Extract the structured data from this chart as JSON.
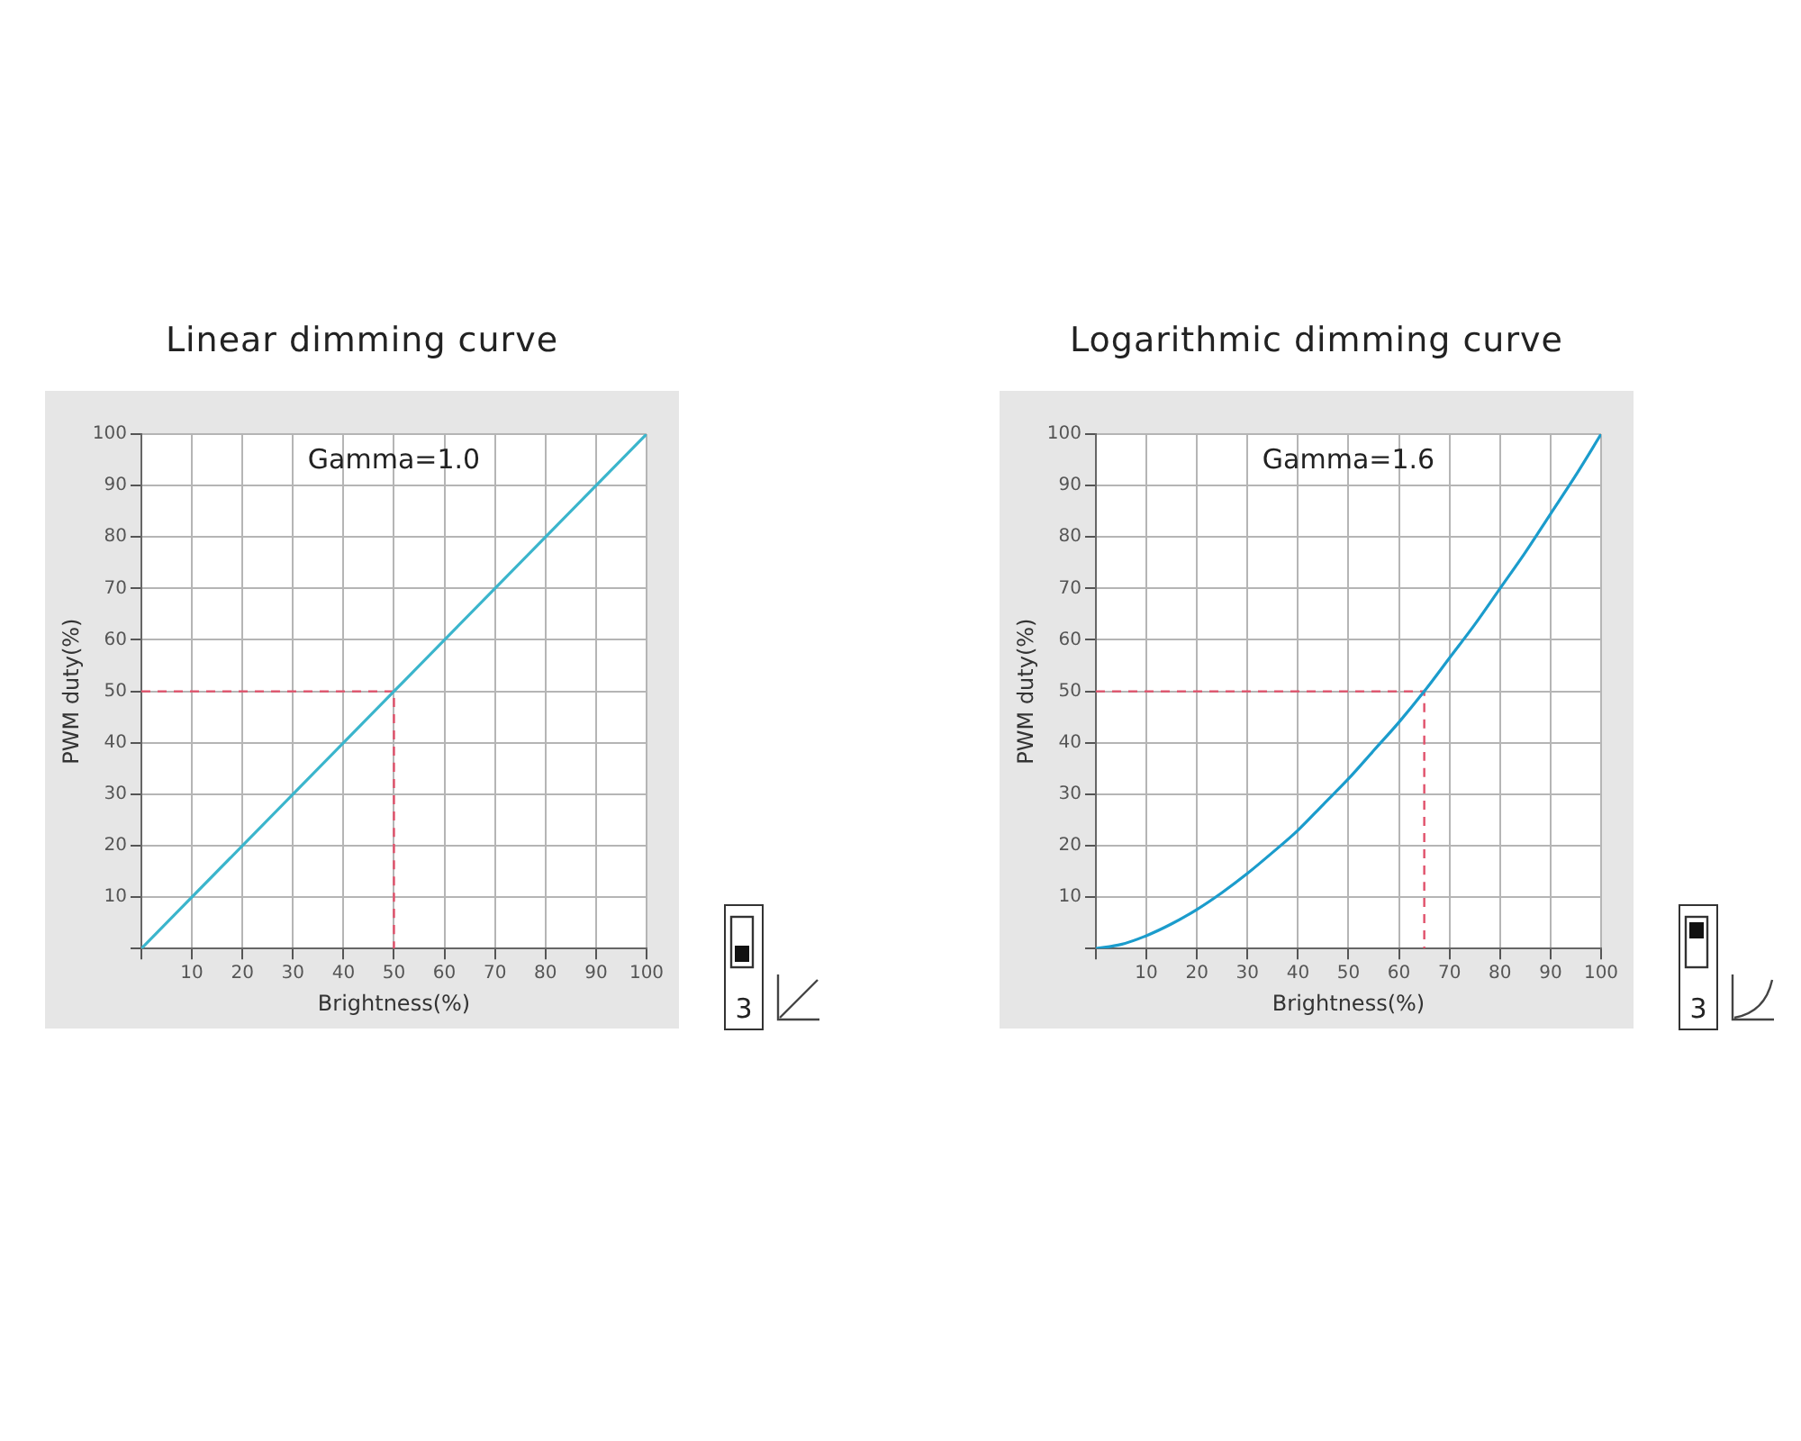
{
  "chart_data": [
    {
      "type": "line",
      "title": "Linear dimming curve",
      "xlabel": "Brightness(%)",
      "ylabel": "PWM duty(%)",
      "xlim": [
        0,
        100
      ],
      "ylim": [
        0,
        100
      ],
      "xticks": [
        {
          "value": 0,
          "label": null
        },
        10,
        20,
        30,
        40,
        50,
        60,
        70,
        80,
        90,
        100
      ],
      "yticks": [
        {
          "value": 0,
          "label": null
        },
        10,
        20,
        30,
        40,
        50,
        60,
        70,
        80,
        90,
        100
      ],
      "grid": true,
      "marker": "none",
      "annotations": [
        "Gamma=1.0",
        "3"
      ],
      "series": [
        {
          "color": "#3bb5cc",
          "x": [
            0,
            100
          ],
          "values": [
            0,
            100
          ]
        },
        {
          "color": "#e0506a",
          "line_style": "dashed",
          "x": [
            0,
            50,
            50
          ],
          "values": [
            50,
            50,
            0
          ]
        }
      ]
    },
    {
      "type": "line",
      "title": "Logarithmic dimming curve",
      "xlabel": "Brightness(%)",
      "ylabel": "PWM duty(%)",
      "xlim": [
        0,
        100
      ],
      "ylim": [
        0,
        100
      ],
      "xticks": [
        {
          "value": 0,
          "label": null
        },
        10,
        20,
        30,
        40,
        50,
        60,
        70,
        80,
        90,
        100
      ],
      "yticks": [
        {
          "value": 0,
          "label": null
        },
        10,
        20,
        30,
        40,
        50,
        60,
        70,
        80,
        90,
        100
      ],
      "grid": true,
      "marker": "none",
      "annotations": [
        "Gamma=1.6",
        "3"
      ],
      "series": [
        {
          "color": "#1b9ccc",
          "x": [
            0,
            5,
            10,
            15,
            20,
            25,
            30,
            35,
            40,
            45,
            50,
            55,
            60,
            65,
            70,
            75,
            80,
            85,
            90,
            95,
            100
          ],
          "values": [
            0,
            0.8,
            2.5,
            4.8,
            7.6,
            10.9,
            14.6,
            18.7,
            23,
            28,
            33,
            38.5,
            44,
            50,
            56.5,
            63,
            70,
            77,
            84.5,
            92,
            100
          ]
        },
        {
          "color": "#e0506a",
          "line_style": "dashed",
          "x": [
            0,
            65,
            65
          ],
          "values": [
            50,
            50,
            0
          ]
        }
      ]
    }
  ]
}
